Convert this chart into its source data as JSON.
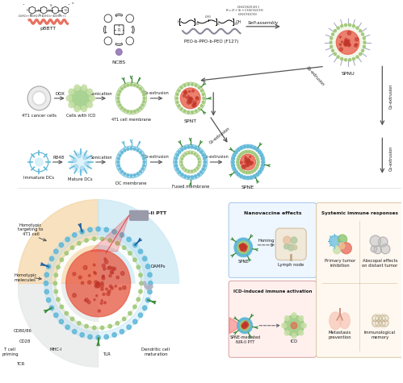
{
  "bg_color": "#ffffff",
  "fig_width": 5.0,
  "fig_height": 4.73,
  "dpi": 100,
  "colors": {
    "green_cell": "#8cc56e",
    "green_light": "#c8e0a8",
    "green_membrane": "#a0c878",
    "blue_cell": "#70c0e0",
    "blue_light": "#a8d8f0",
    "blue_membrane": "#60b8d8",
    "red_core": "#e8604a",
    "red_dots": "#d04535",
    "pink_fill": "#f09080",
    "orange_bg": "#f5d5a0",
    "blue_bg": "#c0e0f0",
    "gray_bg": "#e0e0e0",
    "gray_cell": "#d0d0d0",
    "gray_inner": "#e8e8e8",
    "purple_small": "#9070b0",
    "salmon": "#e87060",
    "dark_green": "#3a8a3a",
    "navy_anchor": "#2060a0",
    "text_color": "#1a1a1a",
    "arrow_color": "#555555",
    "laser_gray": "#909090",
    "helix_gray": "#b0b0c0",
    "box_nv_bg": "#eef6ff",
    "box_nv_edge": "#aaccee",
    "box_icd_bg": "#fff0ee",
    "box_icd_edge": "#ddaaaa",
    "box_sys_bg": "#fff8f0",
    "box_sys_edge": "#ddccaa"
  }
}
